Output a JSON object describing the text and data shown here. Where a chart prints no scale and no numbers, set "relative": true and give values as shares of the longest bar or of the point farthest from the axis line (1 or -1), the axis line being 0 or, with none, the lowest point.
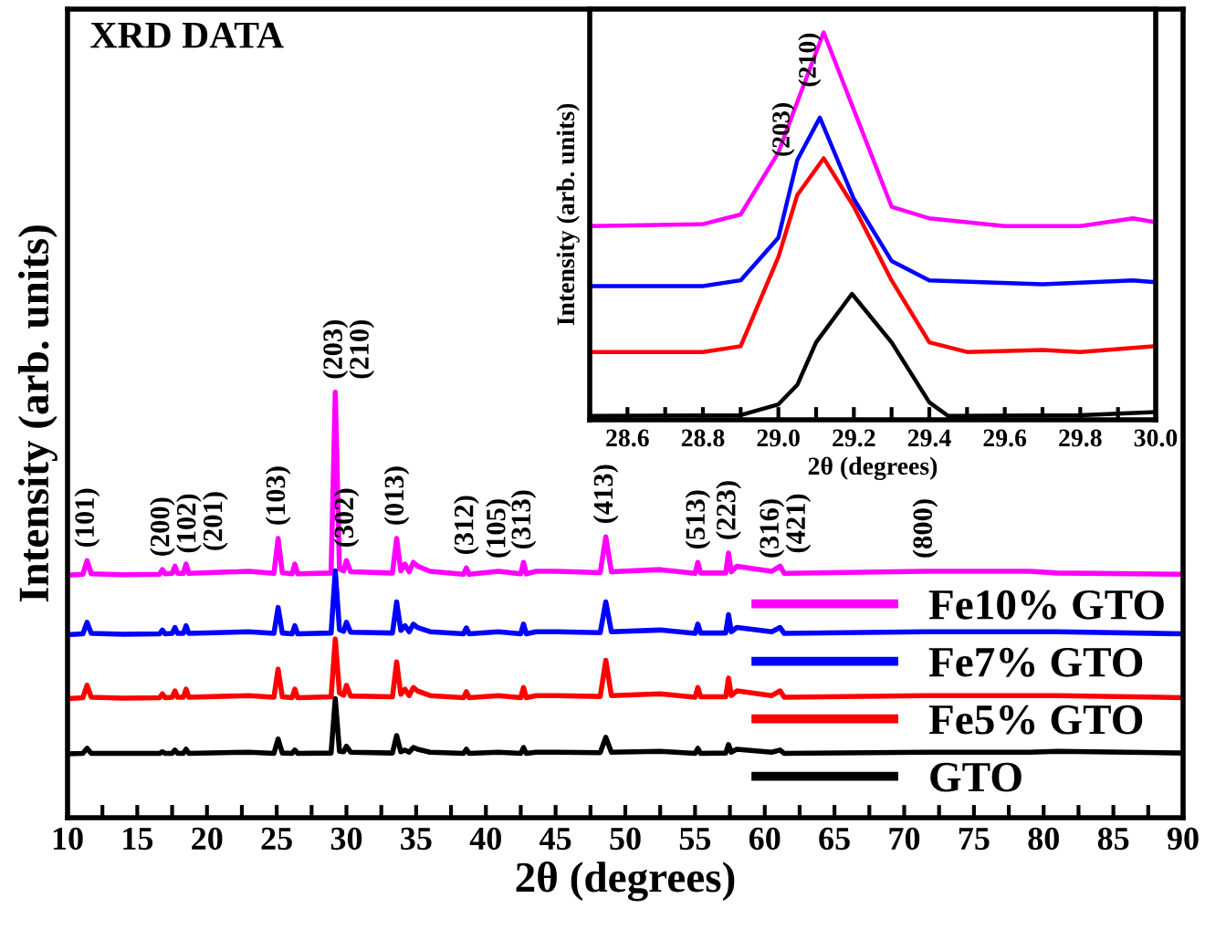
{
  "chart_data": [
    {
      "type": "line",
      "title": "XRD DATA",
      "xlabel": "2θ (degrees)",
      "ylabel": "Intensity (arb. units)",
      "relative": true,
      "legend": "bottom right",
      "grid": false,
      "xlim": [
        10,
        90
      ],
      "xticks": [
        10,
        {
          "value": 12.5,
          "label": null
        },
        15,
        {
          "value": 17.5,
          "label": null
        },
        20,
        {
          "value": 22.5,
          "label": null
        },
        25,
        {
          "value": 27.5,
          "label": null
        },
        30,
        {
          "value": 32.5,
          "label": null
        },
        35,
        {
          "value": 37.5,
          "label": null
        },
        40,
        {
          "value": 42.5,
          "label": null
        },
        45,
        {
          "value": 47.5,
          "label": null
        },
        50,
        {
          "value": 52.5,
          "label": null
        },
        55,
        {
          "value": 57.5,
          "label": null
        },
        60,
        {
          "value": 62.5,
          "label": null
        },
        65,
        {
          "value": 67.5,
          "label": null
        },
        70,
        {
          "value": 72.5,
          "label": null
        },
        75,
        {
          "value": 77.5,
          "label": null
        },
        80,
        {
          "value": 82.5,
          "label": null
        },
        85,
        {
          "value": 87.5,
          "label": null
        },
        90
      ],
      "x": [
        10,
        11.1,
        11.4,
        11.7,
        14,
        16.6,
        16.8,
        17.0,
        17.5,
        17.7,
        17.9,
        18.3,
        18.5,
        18.7,
        23,
        24.8,
        25.1,
        25.4,
        26.1,
        26.3,
        26.5,
        28.9,
        29.2,
        29.5,
        29.8,
        30.0,
        30.3,
        33.3,
        33.6,
        33.9,
        34.2,
        34.5,
        34.8,
        35.1,
        36,
        38.4,
        38.6,
        38.8,
        40.9,
        42.5,
        42.7,
        42.9,
        43.6,
        45.1,
        48.2,
        48.6,
        49.0,
        52.5,
        55.0,
        55.2,
        55.4,
        57.2,
        57.4,
        57.6,
        58.0,
        60.5,
        61.1,
        61.4,
        71.5,
        79,
        81,
        90
      ],
      "series": [
        {
          "name": "Fe10% GTO",
          "color": "#ff00ff",
          "values": [
            0.57,
            0.572,
            0.604,
            0.573,
            0.571,
            0.572,
            0.583,
            0.573,
            0.574,
            0.591,
            0.574,
            0.574,
            0.596,
            0.574,
            0.579,
            0.574,
            0.656,
            0.576,
            0.573,
            0.596,
            0.573,
            0.575,
            1.0,
            0.585,
            0.58,
            0.604,
            0.578,
            0.575,
            0.656,
            0.58,
            0.596,
            0.578,
            0.6,
            0.591,
            0.579,
            0.572,
            0.587,
            0.572,
            0.579,
            0.573,
            0.6,
            0.573,
            0.579,
            0.579,
            0.576,
            0.66,
            0.578,
            0.583,
            0.574,
            0.6,
            0.575,
            0.575,
            0.622,
            0.578,
            0.591,
            0.579,
            0.591,
            0.574,
            0.579,
            0.579,
            0.575,
            0.572
          ]
        },
        {
          "name": "Fe7% GTO",
          "color": "#0000ff",
          "values": [
            0.43,
            0.432,
            0.459,
            0.433,
            0.431,
            0.432,
            0.441,
            0.432,
            0.433,
            0.447,
            0.433,
            0.433,
            0.451,
            0.433,
            0.437,
            0.433,
            0.494,
            0.434,
            0.432,
            0.451,
            0.432,
            0.434,
            0.58,
            0.442,
            0.438,
            0.459,
            0.436,
            0.434,
            0.507,
            0.44,
            0.451,
            0.437,
            0.455,
            0.447,
            0.437,
            0.432,
            0.446,
            0.432,
            0.437,
            0.432,
            0.455,
            0.432,
            0.437,
            0.437,
            0.435,
            0.507,
            0.437,
            0.441,
            0.433,
            0.455,
            0.434,
            0.434,
            0.477,
            0.437,
            0.447,
            0.437,
            0.447,
            0.433,
            0.437,
            0.437,
            0.437,
            0.432
          ]
        },
        {
          "name": "Fe5% GTO",
          "color": "#ff0000",
          "values": [
            0.28,
            0.282,
            0.311,
            0.283,
            0.281,
            0.282,
            0.291,
            0.282,
            0.283,
            0.298,
            0.283,
            0.283,
            0.302,
            0.283,
            0.287,
            0.283,
            0.349,
            0.284,
            0.282,
            0.302,
            0.282,
            0.284,
            0.42,
            0.293,
            0.288,
            0.311,
            0.286,
            0.284,
            0.366,
            0.29,
            0.302,
            0.287,
            0.306,
            0.298,
            0.287,
            0.282,
            0.296,
            0.282,
            0.287,
            0.282,
            0.306,
            0.282,
            0.287,
            0.287,
            0.285,
            0.37,
            0.287,
            0.291,
            0.283,
            0.306,
            0.284,
            0.284,
            0.328,
            0.287,
            0.298,
            0.287,
            0.298,
            0.283,
            0.287,
            0.287,
            0.287,
            0.282
          ]
        },
        {
          "name": "GTO",
          "color": "#000000",
          "values": [
            0.15,
            0.151,
            0.163,
            0.151,
            0.151,
            0.151,
            0.155,
            0.151,
            0.151,
            0.159,
            0.151,
            0.151,
            0.161,
            0.151,
            0.154,
            0.151,
            0.185,
            0.152,
            0.151,
            0.159,
            0.151,
            0.152,
            0.28,
            0.156,
            0.155,
            0.168,
            0.154,
            0.152,
            0.193,
            0.155,
            0.159,
            0.154,
            0.165,
            0.161,
            0.154,
            0.151,
            0.161,
            0.151,
            0.154,
            0.151,
            0.165,
            0.151,
            0.154,
            0.154,
            0.153,
            0.189,
            0.154,
            0.156,
            0.151,
            0.163,
            0.151,
            0.152,
            0.172,
            0.154,
            0.161,
            0.154,
            0.159,
            0.151,
            0.154,
            0.154,
            0.156,
            0.152
          ]
        }
      ],
      "annotations": [
        {
          "text": "(101)",
          "x": 11.4,
          "y": 0.604
        },
        {
          "text": "(200)",
          "x": 16.8,
          "y": 0.583
        },
        {
          "text": "(102)",
          "x": 17.7,
          "y": 0.591
        },
        {
          "text": "(201)",
          "x": 18.5,
          "y": 0.596
        },
        {
          "text": "(103)",
          "x": 25.1,
          "y": 0.656
        },
        {
          "text": "(203)",
          "x": 29.2,
          "y": 1.0
        },
        {
          "text": "(210)",
          "x": 29.2,
          "y": 1.0
        },
        {
          "text": "(302)",
          "x": 30.0,
          "y": 0.604
        },
        {
          "text": "(013)",
          "x": 33.6,
          "y": 0.656
        },
        {
          "text": "(312)",
          "x": 38.6,
          "y": 0.587
        },
        {
          "text": "(105)",
          "x": 40.9,
          "y": 0.579
        },
        {
          "text": "(313)",
          "x": 42.7,
          "y": 0.6
        },
        {
          "text": "(413)",
          "x": 48.6,
          "y": 0.66
        },
        {
          "text": "(513)",
          "x": 55.2,
          "y": 0.6
        },
        {
          "text": "(223)",
          "x": 57.4,
          "y": 0.622
        },
        {
          "text": "(316)",
          "x": 60.5,
          "y": 0.579
        },
        {
          "text": "(421)",
          "x": 61.1,
          "y": 0.591
        },
        {
          "text": "(800)",
          "x": 71.5,
          "y": 0.579
        }
      ]
    },
    {
      "type": "line",
      "xlabel": "2θ (degrees)",
      "ylabel": "Intensity (arb. units)",
      "relative": true,
      "grid": false,
      "legend": false,
      "xlim": [
        28.5,
        30.0
      ],
      "xticks": [
        {
          "value": 28.5,
          "label": null
        },
        28.6,
        {
          "value": 28.7,
          "label": null
        },
        28.8,
        {
          "value": 28.9,
          "label": null
        },
        {
          "value": 29.0,
          "label": "29.0"
        },
        {
          "value": 29.1,
          "label": null
        },
        29.2,
        {
          "value": 29.3,
          "label": null
        },
        29.4,
        {
          "value": 29.5,
          "label": null
        },
        29.6,
        {
          "value": 29.7,
          "label": null
        },
        29.8,
        {
          "value": 29.9,
          "label": null
        },
        {
          "value": 30.0,
          "label": "30.0"
        }
      ],
      "series": [
        {
          "color": "#ff00ff",
          "x": [
            28.5,
            28.8,
            28.9,
            29.0,
            29.05,
            29.12,
            29.2,
            29.3,
            29.4,
            29.6,
            29.8,
            29.94,
            30.0
          ],
          "values": [
            0.5,
            0.505,
            0.53,
            0.69,
            0.82,
            1.0,
            0.8,
            0.55,
            0.52,
            0.5,
            0.5,
            0.52,
            0.51
          ]
        },
        {
          "color": "#0000ff",
          "x": [
            28.5,
            28.8,
            28.9,
            29.0,
            29.05,
            29.11,
            29.2,
            29.3,
            29.4,
            29.7,
            29.94,
            30.0
          ],
          "values": [
            0.345,
            0.345,
            0.36,
            0.47,
            0.67,
            0.78,
            0.57,
            0.41,
            0.36,
            0.35,
            0.36,
            0.355
          ]
        },
        {
          "color": "#ff0000",
          "x": [
            28.5,
            28.8,
            28.9,
            29.0,
            29.05,
            29.12,
            29.2,
            29.3,
            29.4,
            29.5,
            29.7,
            29.8,
            30.0
          ],
          "values": [
            0.175,
            0.175,
            0.19,
            0.42,
            0.58,
            0.675,
            0.55,
            0.36,
            0.2,
            0.175,
            0.18,
            0.175,
            0.19
          ]
        },
        {
          "color": "#000000",
          "x": [
            28.5,
            28.9,
            29.0,
            29.05,
            29.1,
            29.195,
            29.3,
            29.4,
            29.45,
            29.8,
            30.0
          ],
          "values": [
            0.01,
            0.012,
            0.04,
            0.09,
            0.2,
            0.325,
            0.2,
            0.045,
            0.01,
            0.012,
            0.02
          ]
        }
      ],
      "annotations": [
        {
          "text": "(203)",
          "x": 29.05,
          "y": 0.82
        },
        {
          "text": "(210)",
          "x": 29.12,
          "y": 1.0
        }
      ]
    }
  ]
}
